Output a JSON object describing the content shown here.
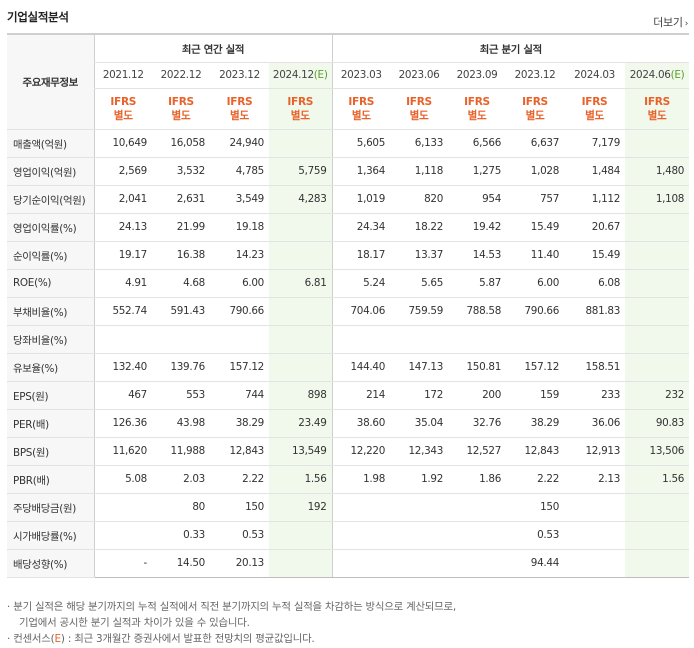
{
  "title": "기업실적분석",
  "more_label": "더보기",
  "header": {
    "row_label": "주요재무정보",
    "annual_group": "최근 연간 실적",
    "quarter_group": "최근 분기 실적",
    "annual_periods": [
      "2021.12",
      "2022.12",
      "2023.12",
      "2024.12(E)"
    ],
    "quarter_periods": [
      "2023.03",
      "2023.06",
      "2023.09",
      "2023.12",
      "2024.03",
      "2024.06(E)"
    ],
    "ifrs_line1": "IFRS",
    "ifrs_line2": "별도"
  },
  "rows": [
    {
      "label": "매출액(억원)",
      "values": [
        "10,649",
        "16,058",
        "24,940",
        "",
        "5,605",
        "6,133",
        "6,566",
        "6,637",
        "7,179",
        ""
      ]
    },
    {
      "label": "영업이익(억원)",
      "values": [
        "2,569",
        "3,532",
        "4,785",
        "5,759",
        "1,364",
        "1,118",
        "1,275",
        "1,028",
        "1,484",
        "1,480"
      ]
    },
    {
      "label": "당기순이익(억원)",
      "values": [
        "2,041",
        "2,631",
        "3,549",
        "4,283",
        "1,019",
        "820",
        "954",
        "757",
        "1,112",
        "1,108"
      ]
    },
    {
      "label": "영업이익률(%)",
      "values": [
        "24.13",
        "21.99",
        "19.18",
        "",
        "24.34",
        "18.22",
        "19.42",
        "15.49",
        "20.67",
        ""
      ]
    },
    {
      "label": "순이익률(%)",
      "values": [
        "19.17",
        "16.38",
        "14.23",
        "",
        "18.17",
        "13.37",
        "14.53",
        "11.40",
        "15.49",
        ""
      ]
    },
    {
      "label": "ROE(%)",
      "values": [
        "4.91",
        "4.68",
        "6.00",
        "6.81",
        "5.24",
        "5.65",
        "5.87",
        "6.00",
        "6.08",
        ""
      ]
    },
    {
      "label": "부채비율(%)",
      "values": [
        "552.74",
        "591.43",
        "790.66",
        "",
        "704.06",
        "759.59",
        "788.58",
        "790.66",
        "881.83",
        ""
      ]
    },
    {
      "label": "당좌비율(%)",
      "values": [
        "",
        "",
        "",
        "",
        "",
        "",
        "",
        "",
        "",
        ""
      ]
    },
    {
      "label": "유보율(%)",
      "values": [
        "132.40",
        "139.76",
        "157.12",
        "",
        "144.40",
        "147.13",
        "150.81",
        "157.12",
        "158.51",
        ""
      ]
    },
    {
      "label": "EPS(원)",
      "values": [
        "467",
        "553",
        "744",
        "898",
        "214",
        "172",
        "200",
        "159",
        "233",
        "232"
      ]
    },
    {
      "label": "PER(배)",
      "values": [
        "126.36",
        "43.98",
        "38.29",
        "23.49",
        "38.60",
        "35.04",
        "32.76",
        "38.29",
        "36.06",
        "90.83"
      ]
    },
    {
      "label": "BPS(원)",
      "values": [
        "11,620",
        "11,988",
        "12,843",
        "13,549",
        "12,220",
        "12,343",
        "12,527",
        "12,843",
        "12,913",
        "13,506"
      ]
    },
    {
      "label": "PBR(배)",
      "values": [
        "5.08",
        "2.03",
        "2.22",
        "1.56",
        "1.98",
        "1.92",
        "1.86",
        "2.22",
        "2.13",
        "1.56"
      ]
    },
    {
      "label": "주당배당금(원)",
      "values": [
        "",
        "80",
        "150",
        "192",
        "",
        "",
        "",
        "150",
        "",
        ""
      ]
    },
    {
      "label": "시가배당률(%)",
      "values": [
        "",
        "0.33",
        "0.53",
        "",
        "",
        "",
        "",
        "0.53",
        "",
        ""
      ]
    },
    {
      "label": "배당성향(%)",
      "values": [
        "-",
        "14.50",
        "20.13",
        "",
        "",
        "",
        "",
        "94.44",
        "",
        ""
      ]
    }
  ],
  "notes": {
    "line1": "· 분기 실적은 해당 분기까지의 누적 실적에서 직전 분기까지의 누적 실적을 차감하는 방식으로 계산되므로,",
    "line2": "기업에서 공시한 분기 실적과 차이가 있을 수 있습니다.",
    "line3_prefix": "· 컨센서스(",
    "line3_e": "E",
    "line3_suffix": ") : 최근 3개월간 증권사에서 발표한 전망치의 평균값입니다."
  },
  "colors": {
    "accent_orange": "#e8622a",
    "estimate_bg": "#f1f9ec",
    "estimate_green": "#5a9e2d"
  }
}
